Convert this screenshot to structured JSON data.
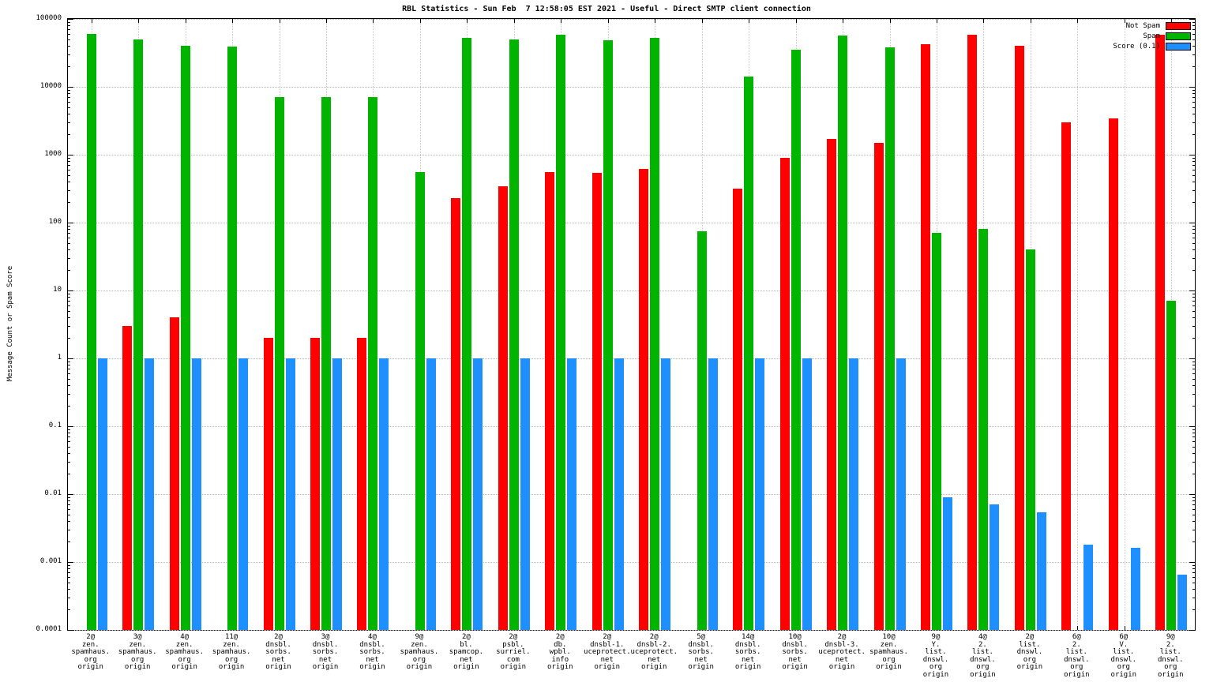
{
  "chart_data": {
    "type": "bar",
    "title": "RBL Statistics - Sun Feb  7 12:58:05 EST 2021 - Useful - Direct SMTP client connection",
    "ylabel": "Message Count or Spam Score",
    "yscale": "log",
    "ylim": [
      0.0001,
      100000
    ],
    "grid": true,
    "legend_position": "top-right",
    "yticks": [
      "100000",
      "10000",
      "1000",
      "100",
      "10",
      "1",
      "0.1",
      "0.01",
      "0.001",
      "0.0001"
    ],
    "legend": [
      {
        "name": "Not Spam",
        "color": "#ff0000"
      },
      {
        "name": "Spam",
        "color": "#00b400"
      },
      {
        "name": "Score (0.1)",
        "color": "#1e8fff"
      }
    ],
    "categories": [
      [
        "2@",
        "zen.",
        "spamhaus.",
        "org",
        "origin"
      ],
      [
        "3@",
        "zen.",
        "spamhaus.",
        "org",
        "origin"
      ],
      [
        "4@",
        "zen.",
        "spamhaus.",
        "org",
        "origin"
      ],
      [
        "11@",
        "zen.",
        "spamhaus.",
        "org",
        "origin"
      ],
      [
        "2@",
        "dnsbl.",
        "sorbs.",
        "net",
        "origin"
      ],
      [
        "3@",
        "dnsbl.",
        "sorbs.",
        "net",
        "origin"
      ],
      [
        "4@",
        "dnsbl.",
        "sorbs.",
        "net",
        "origin"
      ],
      [
        "9@",
        "zen.",
        "spamhaus.",
        "org",
        "origin"
      ],
      [
        "2@",
        "bl.",
        "spamcop.",
        "net",
        "origin"
      ],
      [
        "2@",
        "psbl.",
        "surriel.",
        "com",
        "origin"
      ],
      [
        "2@",
        "db.",
        "wpbl.",
        "info",
        "origin"
      ],
      [
        "2@",
        "dnsbl-1.",
        "uceprotect.",
        "net",
        "origin"
      ],
      [
        "2@",
        "dnsbl-2.",
        "uceprotect.",
        "net",
        "origin"
      ],
      [
        "5@",
        "dnsbl.",
        "sorbs.",
        "net",
        "origin"
      ],
      [
        "14@",
        "dnsbl.",
        "sorbs.",
        "net",
        "origin"
      ],
      [
        "10@",
        "dnsbl.",
        "sorbs.",
        "net",
        "origin"
      ],
      [
        "2@",
        "dnsbl-3.",
        "uceprotect.",
        "net",
        "origin"
      ],
      [
        "10@",
        "zen.",
        "spamhaus.",
        "org",
        "origin"
      ],
      [
        "9@",
        "Y.",
        "list.",
        "dnswl.",
        "org",
        "origin"
      ],
      [
        "4@",
        "2.",
        "list.",
        "dnswl.",
        "org",
        "origin"
      ],
      [
        "2@",
        "list.",
        "dnswl.",
        "org",
        "origin"
      ],
      [
        "6@",
        "2.",
        "list.",
        "dnswl.",
        "org",
        "origin"
      ],
      [
        "6@",
        "V.",
        "list.",
        "dnswl.",
        "org",
        "origin"
      ],
      [
        "9@",
        "2.",
        "list.",
        "dnswl.",
        "org",
        "origin"
      ]
    ],
    "series": [
      {
        "name": "Not Spam",
        "color": "#ff0000",
        "values": [
          null,
          3,
          4,
          null,
          2,
          2,
          2,
          null,
          230,
          340,
          550,
          540,
          620,
          null,
          320,
          900,
          1700,
          1500,
          42000,
          58000,
          40000,
          3000,
          3400,
          58000
        ]
      },
      {
        "name": "Spam",
        "color": "#00b400",
        "values": [
          60000,
          50000,
          40000,
          39000,
          7000,
          7000,
          7000,
          550,
          52000,
          50000,
          58000,
          48000,
          53000,
          75,
          14000,
          35000,
          57000,
          38000,
          70,
          80,
          40,
          null,
          null,
          7
        ]
      },
      {
        "name": "Score (0.1)",
        "color": "#1e8fff",
        "values": [
          1,
          1,
          1,
          1,
          1,
          1,
          1,
          1,
          1,
          1,
          1,
          1,
          1,
          1,
          1,
          1,
          1,
          1,
          0.009,
          0.007,
          0.0054,
          0.0018,
          0.0016,
          0.00065
        ]
      }
    ]
  }
}
